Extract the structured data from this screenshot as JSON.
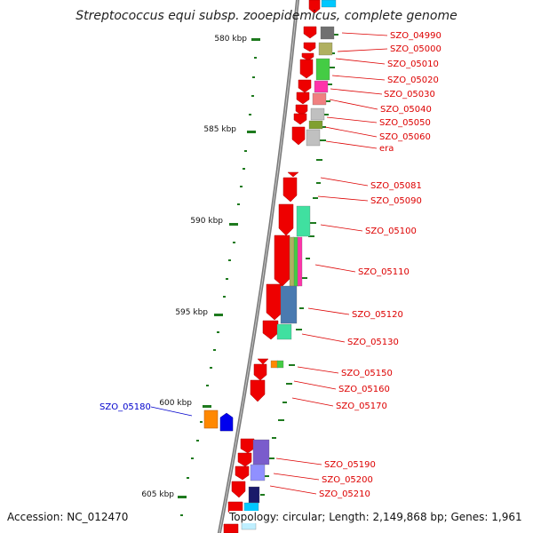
{
  "title": "Streptococcus equi subsp. zooepidemicus, complete genome",
  "footer": {
    "accession": "Accession: NC_012470",
    "summary": "Topology: circular; Length: 2,149,868 bp; Genes: 1,961"
  },
  "kbp_ticks": [
    {
      "label": "580 kbp"
    },
    {
      "label": "585 kbp"
    },
    {
      "label": "590 kbp"
    },
    {
      "label": "595 kbp"
    },
    {
      "label": "600 kbp"
    },
    {
      "label": "605 kbp"
    }
  ],
  "gene_labels": [
    {
      "name": "SZO_04990",
      "color": "#dd0000"
    },
    {
      "name": "SZO_05000",
      "color": "#dd0000"
    },
    {
      "name": "SZO_05010",
      "color": "#dd0000"
    },
    {
      "name": "SZO_05020",
      "color": "#dd0000"
    },
    {
      "name": "SZO_05030",
      "color": "#dd0000"
    },
    {
      "name": "SZO_05040",
      "color": "#dd0000"
    },
    {
      "name": "SZO_05050",
      "color": "#dd0000"
    },
    {
      "name": "SZO_05060",
      "color": "#dd0000"
    },
    {
      "name": "era",
      "color": "#dd0000"
    },
    {
      "name": "SZO_05081",
      "color": "#dd0000"
    },
    {
      "name": "SZO_05090",
      "color": "#dd0000"
    },
    {
      "name": "SZO_05100",
      "color": "#dd0000"
    },
    {
      "name": "SZO_05110",
      "color": "#dd0000"
    },
    {
      "name": "SZO_05120",
      "color": "#dd0000"
    },
    {
      "name": "SZO_05130",
      "color": "#dd0000"
    },
    {
      "name": "SZO_05150",
      "color": "#dd0000"
    },
    {
      "name": "SZO_05160",
      "color": "#dd0000"
    },
    {
      "name": "SZO_05170",
      "color": "#dd0000"
    },
    {
      "name": "SZO_05180",
      "color": "#0000cc"
    },
    {
      "name": "SZO_05190",
      "color": "#dd0000"
    },
    {
      "name": "SZO_05200",
      "color": "#dd0000"
    },
    {
      "name": "SZO_05210",
      "color": "#dd0000"
    }
  ],
  "colors": {
    "backbone": "#7a7a7a",
    "forward_strand_gene": "#ee0000",
    "reverse_strand_gene": "#0000ee",
    "tick_mark": "#1e7a1e",
    "cog_palette": [
      "#00c8ff",
      "#707070",
      "#b0b060",
      "#44cc44",
      "#ff33aa",
      "#f08080",
      "#c0c0c0",
      "#80a030",
      "#40e0a0",
      "#4a7ab0",
      "#ff8800",
      "#7a5ccc",
      "#9090ff"
    ]
  }
}
